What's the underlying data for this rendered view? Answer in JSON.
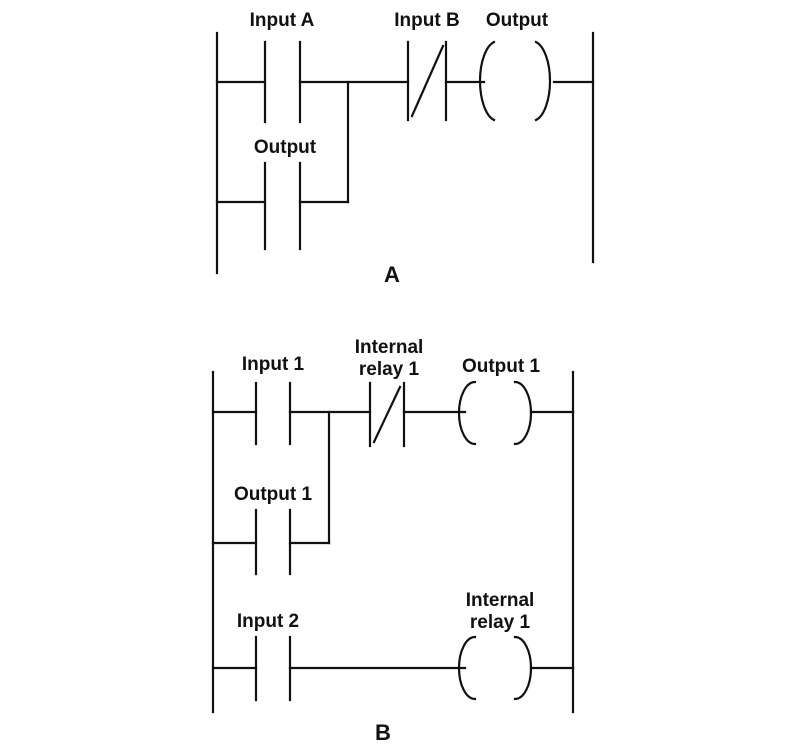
{
  "diagram_a": {
    "caption": "A",
    "labels": {
      "input_a": "Input A",
      "input_b": "Input B",
      "output_coil": "Output",
      "output_contact": "Output"
    }
  },
  "diagram_b": {
    "caption": "B",
    "labels": {
      "input_1": "Input 1",
      "internal_relay_contact_line1": "Internal",
      "internal_relay_contact_line2": "relay 1",
      "output_1_coil": "Output 1",
      "output_1_contact": "Output 1",
      "input_2": "Input 2",
      "internal_relay_coil_line1": "Internal",
      "internal_relay_coil_line2": "relay 1"
    }
  }
}
